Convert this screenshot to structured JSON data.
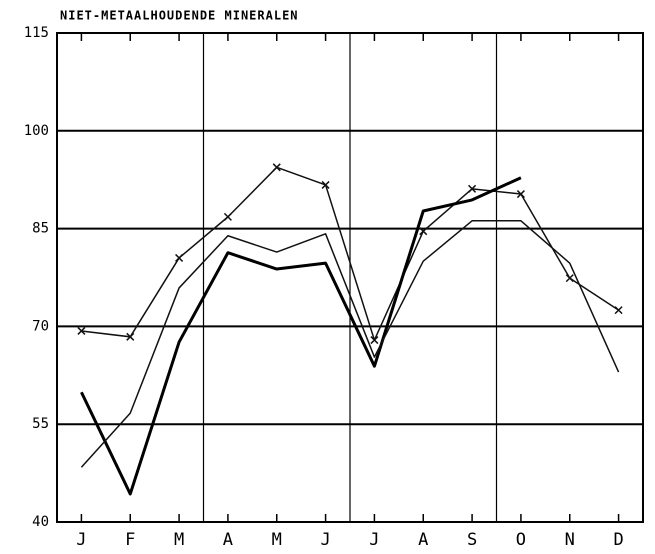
{
  "chart_data": {
    "type": "line",
    "title": "NIET-METAALHOUDENDE MINERALEN",
    "categories": [
      "J",
      "F",
      "M",
      "A",
      "M",
      "J",
      "J",
      "A",
      "S",
      "O",
      "N",
      "D"
    ],
    "series": [
      {
        "color": "#111111",
        "line_width": 1.5,
        "marker": "x",
        "values": [
          69.3,
          68.4,
          80.5,
          86.8,
          94.4,
          91.7,
          67.9,
          84.6,
          91.1,
          90.3,
          77.4,
          72.5
        ]
      },
      {
        "color": "#000000",
        "line_width": 3,
        "values": [
          59.9,
          44.3,
          67.6,
          81.3,
          78.8,
          79.7,
          63.9,
          87.7,
          89.4,
          92.8,
          null,
          null
        ]
      },
      {
        "color": "#111111",
        "line_width": 1.5,
        "values": [
          48.4,
          56.7,
          75.9,
          83.9,
          81.4,
          84.2,
          65.3,
          80,
          86.2,
          86.2,
          79.7,
          63
        ]
      }
    ],
    "ylim": [
      40,
      115
    ],
    "yticks": [
      40,
      55,
      70,
      85,
      100,
      115
    ],
    "grid": true,
    "quarter_lines": true
  }
}
